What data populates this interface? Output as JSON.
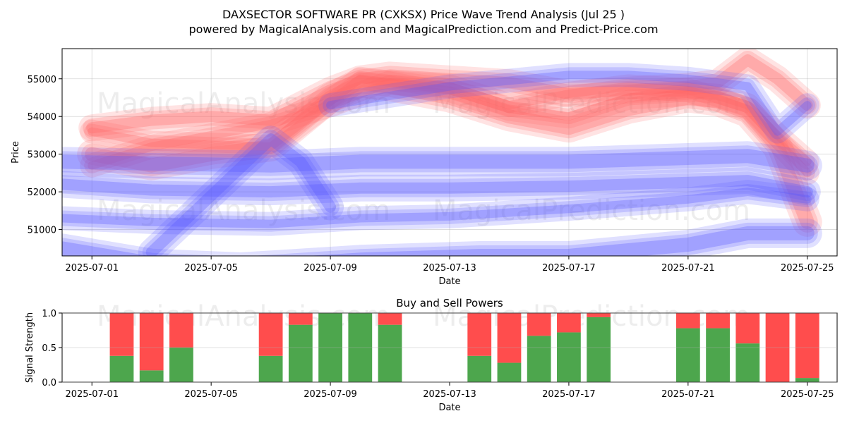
{
  "title_line1": "DAXSECTOR SOFTWARE PR (CXKSX) Price Wave Trend Analysis (Jul 25 )",
  "title_line2": "powered by MagicalAnalysis.com and MagicalPrediction.com and Predict-Price.com",
  "watermarks": [
    "MagicalAnalysis.com",
    "MagicalPrediction.com"
  ],
  "colors": {
    "buy": "#4da64d",
    "sell": "#ff4d4d",
    "blue_band": "#5555ff",
    "red_band": "#ff6666"
  },
  "chart_data": [
    {
      "type": "line",
      "title": "",
      "xlabel": "Date",
      "ylabel": "Price",
      "x_ticks": [
        "2025-07-01",
        "2025-07-05",
        "2025-07-09",
        "2025-07-13",
        "2025-07-17",
        "2025-07-21",
        "2025-07-25"
      ],
      "y_ticks": [
        51000,
        52000,
        53000,
        54000,
        55000
      ],
      "ylim": [
        50300,
        55800
      ],
      "xlim": [
        "2025-06-30",
        "2025-07-26"
      ],
      "series": [
        {
          "color": "red",
          "x": [
            "2025-07-01",
            "2025-07-03",
            "2025-07-05",
            "2025-07-07",
            "2025-07-09",
            "2025-07-10",
            "2025-07-11",
            "2025-07-13",
            "2025-07-15",
            "2025-07-17",
            "2025-07-19",
            "2025-07-21",
            "2025-07-22",
            "2025-07-23",
            "2025-07-24",
            "2025-07-25"
          ],
          "y": [
            53600,
            53300,
            53250,
            53200,
            54400,
            55000,
            54900,
            54700,
            54200,
            54000,
            54500,
            54600,
            54550,
            54300,
            53500,
            52800
          ]
        },
        {
          "color": "red",
          "x": [
            "2025-07-01",
            "2025-07-03",
            "2025-07-05",
            "2025-07-07",
            "2025-07-09",
            "2025-07-10",
            "2025-07-11",
            "2025-07-13",
            "2025-07-15",
            "2025-07-17",
            "2025-07-19",
            "2025-07-21",
            "2025-07-22",
            "2025-07-23",
            "2025-07-24",
            "2025-07-25"
          ],
          "y": [
            53700,
            53900,
            54000,
            53900,
            54700,
            55000,
            55100,
            55000,
            54900,
            54600,
            54700,
            54800,
            54900,
            55500,
            55000,
            54300
          ]
        },
        {
          "color": "red",
          "x": [
            "2025-07-01",
            "2025-07-03",
            "2025-07-05",
            "2025-07-07",
            "2025-07-09",
            "2025-07-10",
            "2025-07-11",
            "2025-07-13",
            "2025-07-15",
            "2025-07-17",
            "2025-07-19",
            "2025-07-21",
            "2025-07-22",
            "2025-07-23",
            "2025-07-24",
            "2025-07-25"
          ],
          "y": [
            53000,
            52700,
            53000,
            53200,
            54500,
            54900,
            54800,
            54500,
            54000,
            53700,
            54200,
            54500,
            54400,
            54100,
            53200,
            51200
          ]
        },
        {
          "color": "red",
          "x": [
            "2025-07-01",
            "2025-07-03",
            "2025-07-05",
            "2025-07-07",
            "2025-07-09",
            "2025-07-11",
            "2025-07-13",
            "2025-07-15",
            "2025-07-17",
            "2025-07-19",
            "2025-07-21",
            "2025-07-23",
            "2025-07-25"
          ],
          "y": [
            52700,
            53200,
            53500,
            53800,
            54300,
            54900,
            54800,
            54300,
            54600,
            54800,
            54700,
            54200,
            52500
          ]
        },
        {
          "color": "blue",
          "x": [
            "2025-06-30",
            "2025-07-03",
            "2025-07-07",
            "2025-07-10",
            "2025-07-13",
            "2025-07-17",
            "2025-07-21",
            "2025-07-23",
            "2025-07-25"
          ],
          "y": [
            52200,
            52050,
            52000,
            52100,
            52100,
            52150,
            52250,
            52300,
            52000
          ]
        },
        {
          "color": "blue",
          "x": [
            "2025-06-30",
            "2025-07-03",
            "2025-07-07",
            "2025-07-10",
            "2025-07-13",
            "2025-07-17",
            "2025-07-21",
            "2025-07-23",
            "2025-07-25"
          ],
          "y": [
            52800,
            52750,
            52700,
            52800,
            52800,
            52800,
            52900,
            52950,
            52700
          ]
        },
        {
          "color": "blue",
          "x": [
            "2025-06-30",
            "2025-07-03",
            "2025-07-07",
            "2025-07-10",
            "2025-07-13",
            "2025-07-17",
            "2025-07-21",
            "2025-07-23",
            "2025-07-25"
          ],
          "y": [
            51300,
            51200,
            51150,
            51300,
            51350,
            51550,
            51800,
            52000,
            51800
          ]
        },
        {
          "color": "blue",
          "x": [
            "2025-07-03",
            "2025-07-07",
            "2025-07-08",
            "2025-07-09"
          ],
          "y": [
            50400,
            53400,
            52800,
            51600
          ]
        },
        {
          "color": "blue",
          "x": [
            "2025-06-30",
            "2025-07-03",
            "2025-07-06",
            "2025-07-10",
            "2025-07-14",
            "2025-07-17",
            "2025-07-21",
            "2025-07-23",
            "2025-07-25"
          ],
          "y": [
            50500,
            50100,
            50000,
            50200,
            50300,
            50300,
            50600,
            50900,
            50900
          ]
        },
        {
          "color": "blue",
          "x": [
            "2025-07-09",
            "2025-07-13",
            "2025-07-17",
            "2025-07-19",
            "2025-07-21",
            "2025-07-23",
            "2025-07-24",
            "2025-07-25"
          ],
          "y": [
            54300,
            54800,
            55100,
            55100,
            55000,
            54800,
            53600,
            54300
          ]
        }
      ]
    },
    {
      "type": "bar",
      "title": "Buy and Sell Powers",
      "xlabel": "Date",
      "ylabel": "Signal Strength",
      "x_ticks": [
        "2025-07-01",
        "2025-07-05",
        "2025-07-09",
        "2025-07-13",
        "2025-07-17",
        "2025-07-21",
        "2025-07-25"
      ],
      "y_ticks": [
        "0.0",
        "0.5",
        "1.0"
      ],
      "ylim": [
        0,
        1
      ],
      "categories": [
        "2025-07-02",
        "2025-07-03",
        "2025-07-04",
        "2025-07-07",
        "2025-07-08",
        "2025-07-09",
        "2025-07-10",
        "2025-07-11",
        "2025-07-14",
        "2025-07-15",
        "2025-07-16",
        "2025-07-17",
        "2025-07-18",
        "2025-07-21",
        "2025-07-22",
        "2025-07-23",
        "2025-07-24",
        "2025-07-25"
      ],
      "series": [
        {
          "name": "Buy",
          "values": [
            0.38,
            0.17,
            0.5,
            0.38,
            0.83,
            1.0,
            1.0,
            0.83,
            0.38,
            0.28,
            0.67,
            0.72,
            0.94,
            0.78,
            0.78,
            0.56,
            0.0,
            0.06
          ]
        },
        {
          "name": "Sell",
          "values": [
            0.62,
            0.83,
            0.5,
            0.62,
            0.17,
            0.0,
            0.0,
            0.17,
            0.62,
            0.72,
            0.33,
            0.28,
            0.06,
            0.22,
            0.22,
            0.44,
            1.0,
            0.94
          ]
        }
      ]
    }
  ]
}
